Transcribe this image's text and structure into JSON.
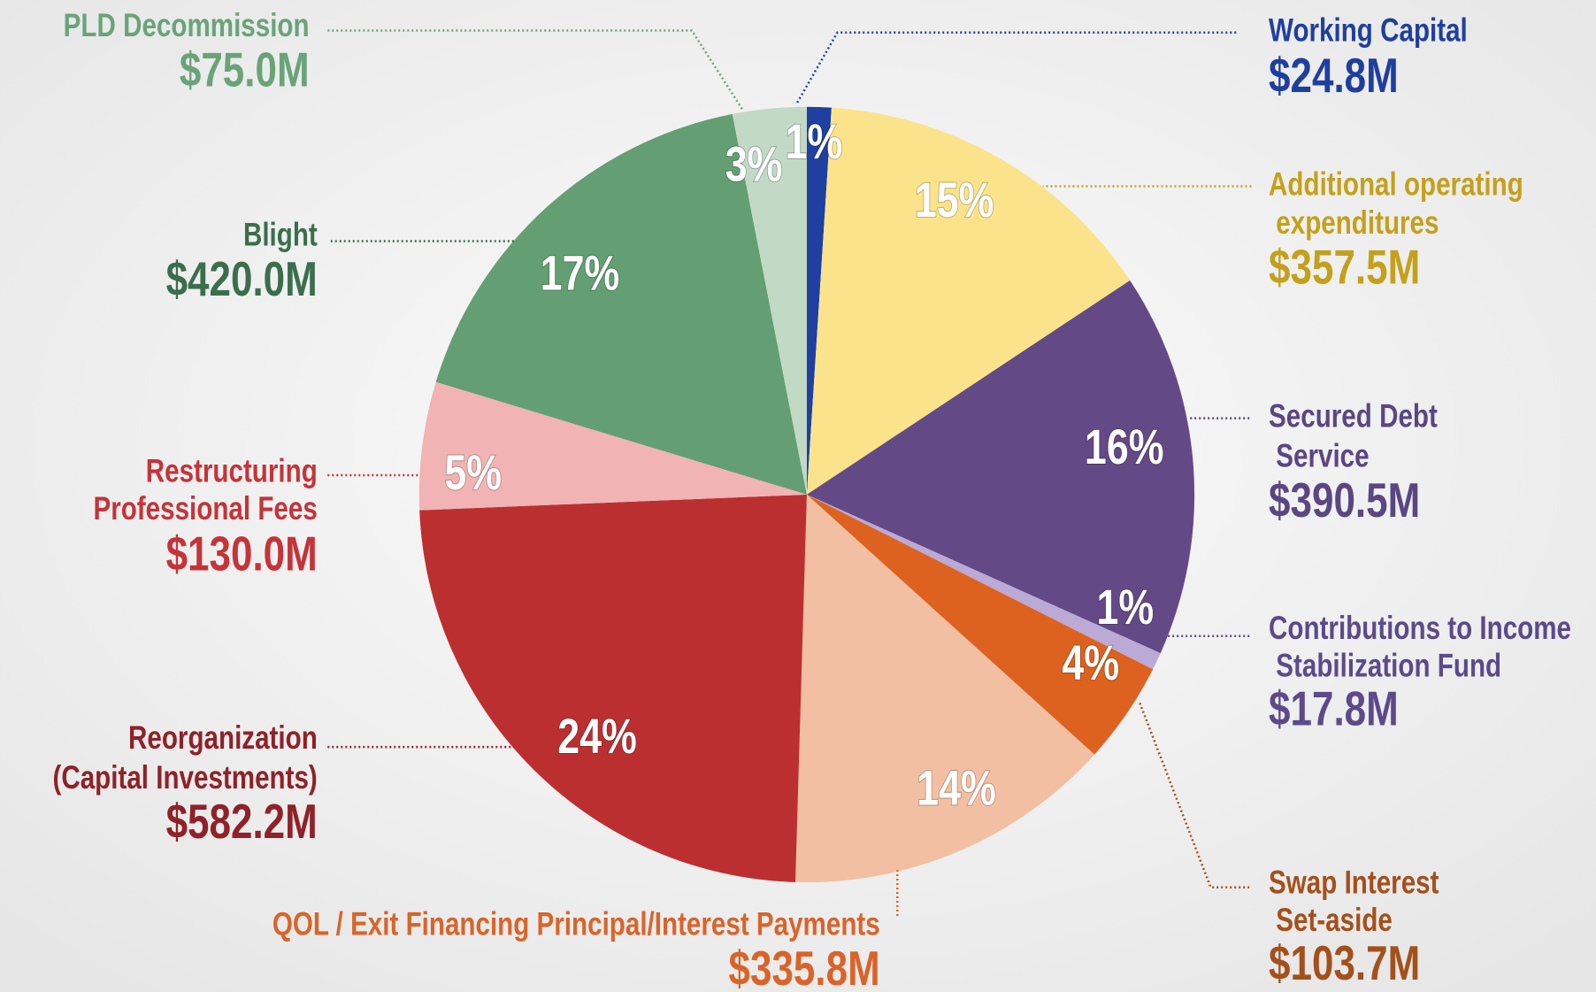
{
  "chart_data": {
    "type": "pie",
    "categories": [
      "Working Capital",
      "Additional operating expenditures",
      "Secured Debt Service",
      "Contributions to Income Stabilization Fund",
      "Swap Interest Set-aside",
      "QOL / Exit Financing Principal/Interest Payments",
      "Reorganization (Capital Investments)",
      "Restructuring Professional Fees",
      "Blight",
      "PLD Decommission"
    ],
    "values": [
      24.8,
      357.5,
      390.5,
      17.8,
      103.7,
      335.8,
      582.2,
      130.0,
      420.0,
      75.0
    ],
    "value_labels": [
      "$24.8M",
      "$357.5M",
      "$390.5M",
      "$17.8M",
      "$103.7M",
      "$335.8M",
      "$582.2M",
      "$130.0M",
      "$420.0M",
      "$75.0M"
    ],
    "percent_labels": [
      "1%",
      "15%",
      "16%",
      "1%",
      "4%",
      "14%",
      "24%",
      "5%",
      "17%",
      "3%"
    ],
    "colors": [
      "#1f40a0",
      "#fbe38c",
      "#634a87",
      "#bba9d6",
      "#dd621f",
      "#f3bfa3",
      "#bc2f31",
      "#f1b3b3",
      "#639f72",
      "#c2d9c6"
    ],
    "label_colors": [
      "#1f3f9e",
      "#c4a01c",
      "#5a4683",
      "#5c4a8a",
      "#a4501c",
      "#d9642a",
      "#8e2228",
      "#c43438",
      "#3b6e4c",
      "#6aa37a"
    ]
  }
}
